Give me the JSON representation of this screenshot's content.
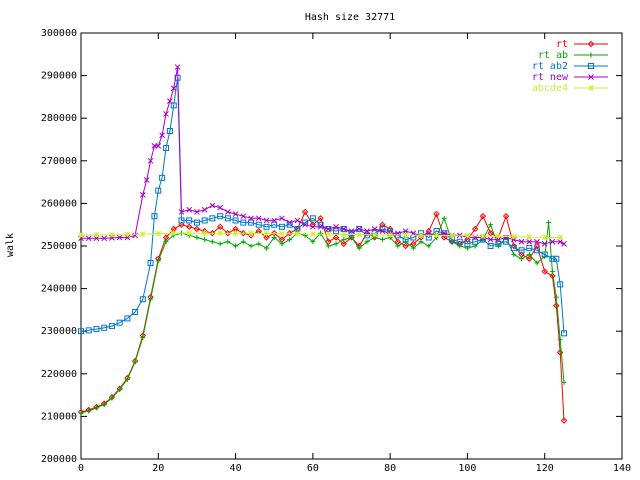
{
  "chart_data": {
    "type": "line",
    "title": "Hash size 32771",
    "xlabel": "",
    "ylabel": "walk",
    "xlim": [
      0,
      140
    ],
    "ylim": [
      200000,
      300000
    ],
    "xticks": [
      0,
      20,
      40,
      60,
      80,
      100,
      120,
      140
    ],
    "yticks": [
      200000,
      210000,
      220000,
      230000,
      240000,
      250000,
      260000,
      270000,
      280000,
      290000,
      300000
    ],
    "xtick_labels": [
      "0",
      "20",
      "40",
      "60",
      "80",
      "100",
      "120",
      "140"
    ],
    "ytick_labels": [
      "200000",
      "210000",
      "220000",
      "230000",
      "240000",
      "250000",
      "260000",
      "270000",
      "280000",
      "290000",
      "300000"
    ],
    "grid": false,
    "legend_position": "top-right",
    "series": [
      {
        "name": "rt",
        "color": "#ff0000",
        "marker": "diamond",
        "points": [
          [
            0,
            211000
          ],
          [
            2,
            211500
          ],
          [
            4,
            212200
          ],
          [
            6,
            213000
          ],
          [
            8,
            214500
          ],
          [
            10,
            216500
          ],
          [
            12,
            219000
          ],
          [
            14,
            223000
          ],
          [
            16,
            229000
          ],
          [
            18,
            238000
          ],
          [
            20,
            247000
          ],
          [
            22,
            252000
          ],
          [
            24,
            254000
          ],
          [
            26,
            255000
          ],
          [
            28,
            254500
          ],
          [
            30,
            254000
          ],
          [
            32,
            253500
          ],
          [
            34,
            253000
          ],
          [
            36,
            254500
          ],
          [
            38,
            253000
          ],
          [
            40,
            254000
          ],
          [
            42,
            253000
          ],
          [
            44,
            252500
          ],
          [
            46,
            253500
          ],
          [
            48,
            252000
          ],
          [
            50,
            253000
          ],
          [
            52,
            251500
          ],
          [
            54,
            253000
          ],
          [
            56,
            254000
          ],
          [
            58,
            258000
          ],
          [
            60,
            255000
          ],
          [
            62,
            256500
          ],
          [
            64,
            251000
          ],
          [
            66,
            252000
          ],
          [
            68,
            250500
          ],
          [
            70,
            252000
          ],
          [
            72,
            250000
          ],
          [
            74,
            253000
          ],
          [
            76,
            252000
          ],
          [
            78,
            255000
          ],
          [
            80,
            254000
          ],
          [
            82,
            251000
          ],
          [
            84,
            250000
          ],
          [
            86,
            250500
          ],
          [
            88,
            252000
          ],
          [
            90,
            253500
          ],
          [
            92,
            257500
          ],
          [
            94,
            252000
          ],
          [
            96,
            251000
          ],
          [
            98,
            250500
          ],
          [
            100,
            251500
          ],
          [
            102,
            254000
          ],
          [
            104,
            257000
          ],
          [
            106,
            253000
          ],
          [
            108,
            252000
          ],
          [
            110,
            257000
          ],
          [
            112,
            250000
          ],
          [
            114,
            248000
          ],
          [
            116,
            247000
          ],
          [
            118,
            250000
          ],
          [
            120,
            244000
          ],
          [
            122,
            243000
          ],
          [
            123,
            236000
          ],
          [
            124,
            225000
          ],
          [
            125,
            209000
          ]
        ]
      },
      {
        "name": "rt ab",
        "color": "#00aa00",
        "marker": "plus",
        "points": [
          [
            0,
            210800
          ],
          [
            2,
            211300
          ],
          [
            4,
            212000
          ],
          [
            6,
            212800
          ],
          [
            8,
            214300
          ],
          [
            10,
            216300
          ],
          [
            12,
            218700
          ],
          [
            14,
            222800
          ],
          [
            16,
            228500
          ],
          [
            18,
            237500
          ],
          [
            20,
            246500
          ],
          [
            22,
            251000
          ],
          [
            24,
            252500
          ],
          [
            26,
            253000
          ],
          [
            28,
            252500
          ],
          [
            30,
            252000
          ],
          [
            32,
            251500
          ],
          [
            34,
            251000
          ],
          [
            36,
            250500
          ],
          [
            38,
            251000
          ],
          [
            40,
            250000
          ],
          [
            42,
            251000
          ],
          [
            44,
            250000
          ],
          [
            46,
            250500
          ],
          [
            48,
            249500
          ],
          [
            50,
            252000
          ],
          [
            52,
            250500
          ],
          [
            54,
            251500
          ],
          [
            56,
            253000
          ],
          [
            58,
            252500
          ],
          [
            60,
            251000
          ],
          [
            62,
            253000
          ],
          [
            64,
            250000
          ],
          [
            66,
            250500
          ],
          [
            68,
            251500
          ],
          [
            70,
            252000
          ],
          [
            72,
            249500
          ],
          [
            74,
            251000
          ],
          [
            76,
            252000
          ],
          [
            78,
            251500
          ],
          [
            80,
            252000
          ],
          [
            82,
            250000
          ],
          [
            84,
            251000
          ],
          [
            86,
            249500
          ],
          [
            88,
            251000
          ],
          [
            90,
            250000
          ],
          [
            92,
            252000
          ],
          [
            94,
            256500
          ],
          [
            96,
            251000
          ],
          [
            98,
            250000
          ],
          [
            100,
            249500
          ],
          [
            102,
            250000
          ],
          [
            104,
            251500
          ],
          [
            106,
            255000
          ],
          [
            108,
            250000
          ],
          [
            110,
            252000
          ],
          [
            112,
            248000
          ],
          [
            114,
            247000
          ],
          [
            116,
            248000
          ],
          [
            118,
            246000
          ],
          [
            120,
            247500
          ],
          [
            121,
            255500
          ],
          [
            122,
            244000
          ],
          [
            123,
            238000
          ],
          [
            124,
            228000
          ],
          [
            125,
            218000
          ]
        ]
      },
      {
        "name": "rt ab2",
        "color": "#0077cc",
        "marker": "square",
        "points": [
          [
            0,
            230000
          ],
          [
            2,
            230200
          ],
          [
            4,
            230500
          ],
          [
            6,
            230800
          ],
          [
            8,
            231200
          ],
          [
            10,
            232000
          ],
          [
            12,
            233000
          ],
          [
            14,
            234500
          ],
          [
            16,
            237500
          ],
          [
            18,
            246000
          ],
          [
            19,
            257000
          ],
          [
            20,
            263000
          ],
          [
            21,
            266000
          ],
          [
            22,
            273000
          ],
          [
            23,
            277000
          ],
          [
            24,
            283000
          ],
          [
            25,
            289500
          ],
          [
            26,
            256000
          ],
          [
            28,
            256000
          ],
          [
            30,
            255500
          ],
          [
            32,
            256000
          ],
          [
            34,
            256500
          ],
          [
            36,
            257000
          ],
          [
            38,
            256500
          ],
          [
            40,
            256000
          ],
          [
            42,
            255500
          ],
          [
            44,
            255500
          ],
          [
            46,
            255000
          ],
          [
            48,
            254500
          ],
          [
            50,
            255000
          ],
          [
            52,
            254500
          ],
          [
            54,
            255000
          ],
          [
            56,
            254000
          ],
          [
            58,
            255500
          ],
          [
            60,
            256500
          ],
          [
            62,
            255000
          ],
          [
            64,
            254000
          ],
          [
            66,
            253500
          ],
          [
            68,
            254000
          ],
          [
            70,
            253000
          ],
          [
            72,
            254000
          ],
          [
            74,
            252500
          ],
          [
            76,
            253000
          ],
          [
            78,
            254000
          ],
          [
            80,
            253500
          ],
          [
            82,
            252500
          ],
          [
            84,
            251500
          ],
          [
            86,
            252000
          ],
          [
            88,
            253000
          ],
          [
            90,
            252000
          ],
          [
            92,
            253500
          ],
          [
            94,
            253000
          ],
          [
            96,
            251500
          ],
          [
            98,
            251000
          ],
          [
            100,
            250500
          ],
          [
            102,
            251000
          ],
          [
            104,
            251500
          ],
          [
            106,
            250000
          ],
          [
            108,
            250500
          ],
          [
            110,
            251000
          ],
          [
            112,
            249500
          ],
          [
            114,
            249000
          ],
          [
            116,
            249500
          ],
          [
            118,
            249000
          ],
          [
            120,
            248000
          ],
          [
            122,
            247000
          ],
          [
            123,
            247000
          ],
          [
            124,
            241000
          ],
          [
            125,
            229500
          ]
        ]
      },
      {
        "name": "rt new",
        "color": "#aa00cc",
        "marker": "cross",
        "points": [
          [
            0,
            251800
          ],
          [
            2,
            251800
          ],
          [
            4,
            251800
          ],
          [
            6,
            251800
          ],
          [
            8,
            251900
          ],
          [
            10,
            252000
          ],
          [
            12,
            252000
          ],
          [
            14,
            252500
          ],
          [
            16,
            262000
          ],
          [
            17,
            265500
          ],
          [
            18,
            270000
          ],
          [
            19,
            273500
          ],
          [
            20,
            273500
          ],
          [
            21,
            276000
          ],
          [
            22,
            281000
          ],
          [
            23,
            284000
          ],
          [
            24,
            287000
          ],
          [
            25,
            292000
          ],
          [
            26,
            258000
          ],
          [
            28,
            258500
          ],
          [
            30,
            258000
          ],
          [
            32,
            258500
          ],
          [
            34,
            259500
          ],
          [
            36,
            259000
          ],
          [
            38,
            258000
          ],
          [
            40,
            257500
          ],
          [
            42,
            257000
          ],
          [
            44,
            256500
          ],
          [
            46,
            256500
          ],
          [
            48,
            256000
          ],
          [
            50,
            256000
          ],
          [
            52,
            256500
          ],
          [
            54,
            255500
          ],
          [
            56,
            256000
          ],
          [
            58,
            255000
          ],
          [
            60,
            254500
          ],
          [
            62,
            254500
          ],
          [
            64,
            254000
          ],
          [
            66,
            254500
          ],
          [
            68,
            254000
          ],
          [
            70,
            253500
          ],
          [
            72,
            254000
          ],
          [
            74,
            253500
          ],
          [
            76,
            254000
          ],
          [
            78,
            253500
          ],
          [
            80,
            253000
          ],
          [
            82,
            253000
          ],
          [
            84,
            253500
          ],
          [
            86,
            253000
          ],
          [
            88,
            252500
          ],
          [
            90,
            253000
          ],
          [
            92,
            252500
          ],
          [
            94,
            253000
          ],
          [
            96,
            252500
          ],
          [
            98,
            252500
          ],
          [
            100,
            252000
          ],
          [
            102,
            252000
          ],
          [
            104,
            252000
          ],
          [
            106,
            251500
          ],
          [
            108,
            251500
          ],
          [
            110,
            252000
          ],
          [
            112,
            251500
          ],
          [
            114,
            251000
          ],
          [
            116,
            251000
          ],
          [
            118,
            251000
          ],
          [
            120,
            250500
          ],
          [
            122,
            251000
          ],
          [
            124,
            251000
          ],
          [
            125,
            250500
          ]
        ]
      },
      {
        "name": "abcde4",
        "color": "#ccee33",
        "marker": "star",
        "points": [
          [
            0,
            252500
          ],
          [
            4,
            252600
          ],
          [
            8,
            252600
          ],
          [
            12,
            252700
          ],
          [
            16,
            252800
          ],
          [
            20,
            252900
          ],
          [
            24,
            253000
          ],
          [
            28,
            253000
          ],
          [
            32,
            253000
          ],
          [
            36,
            253000
          ],
          [
            40,
            253000
          ],
          [
            44,
            253000
          ],
          [
            48,
            252900
          ],
          [
            52,
            252900
          ],
          [
            56,
            252900
          ],
          [
            60,
            252800
          ],
          [
            64,
            252800
          ],
          [
            68,
            252700
          ],
          [
            72,
            252700
          ],
          [
            76,
            252600
          ],
          [
            80,
            252600
          ],
          [
            84,
            252600
          ],
          [
            88,
            252500
          ],
          [
            92,
            252500
          ],
          [
            96,
            252400
          ],
          [
            100,
            252400
          ],
          [
            104,
            252300
          ],
          [
            108,
            252300
          ],
          [
            112,
            252200
          ],
          [
            116,
            252100
          ],
          [
            120,
            252000
          ],
          [
            124,
            252000
          ]
        ]
      }
    ]
  }
}
